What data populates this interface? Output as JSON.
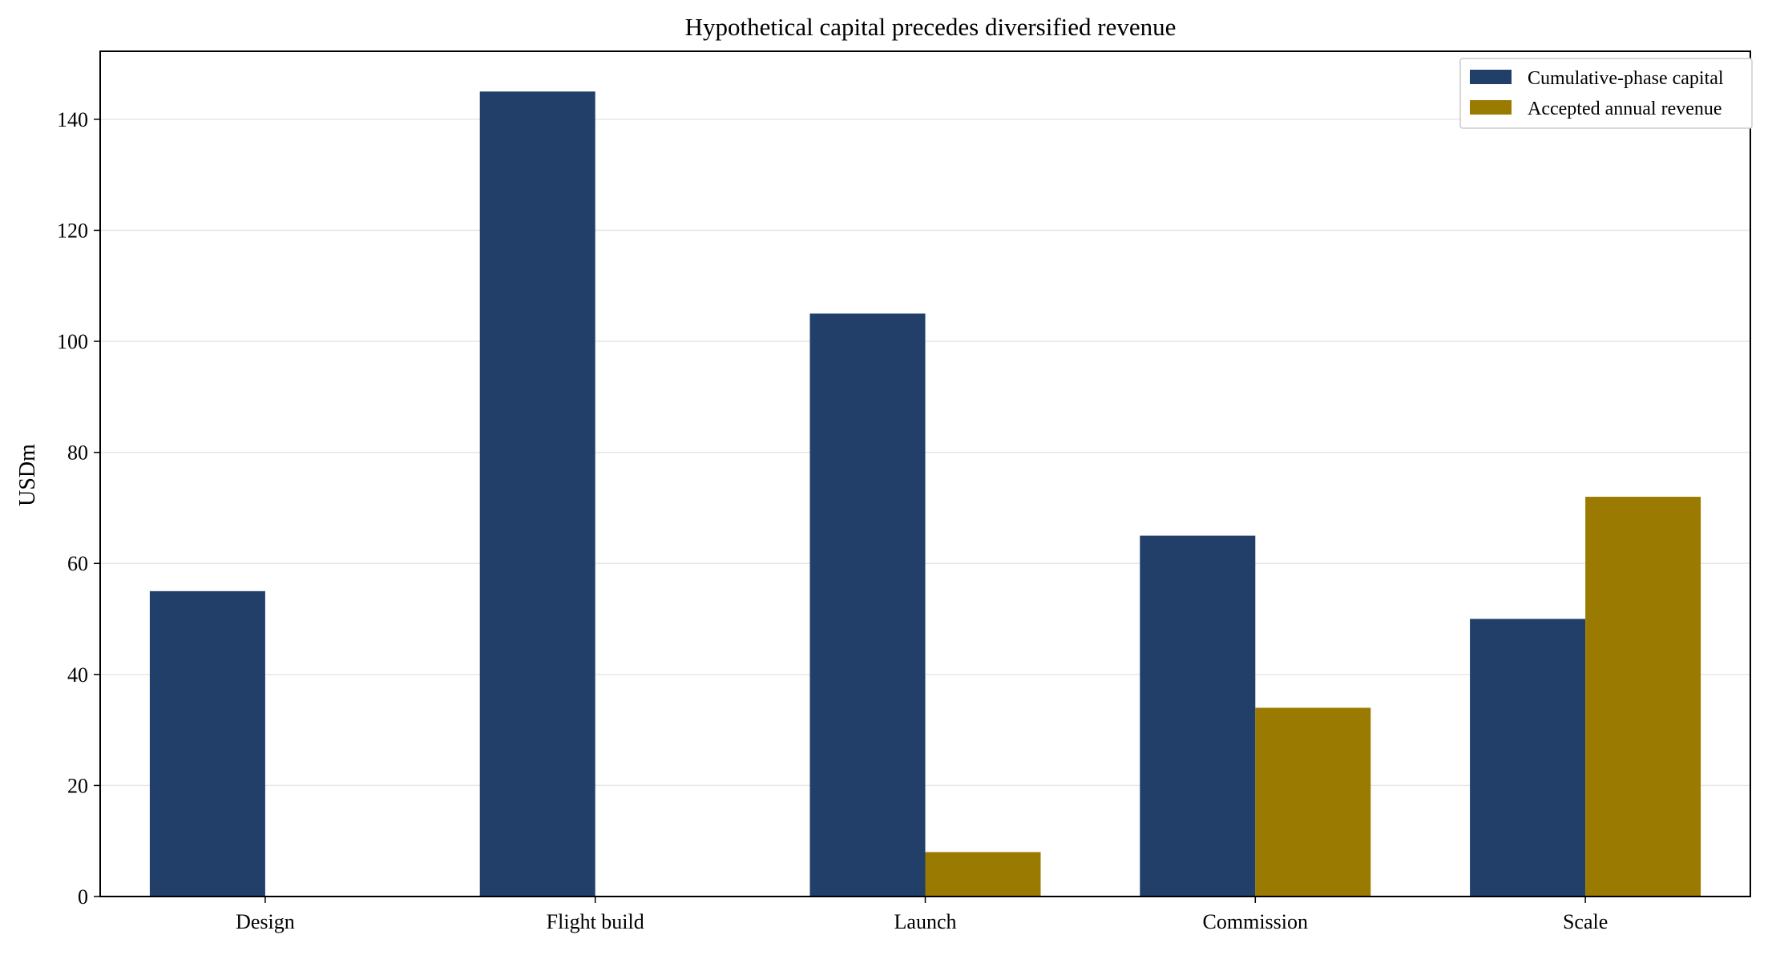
{
  "chart_data": {
    "type": "bar",
    "title": "Hypothetical capital precedes diversified revenue",
    "xlabel": "",
    "ylabel": "USDm",
    "categories": [
      "Design",
      "Flight build",
      "Launch",
      "Commission",
      "Scale"
    ],
    "series": [
      {
        "name": "Cumulative-phase capital",
        "values": [
          55,
          145,
          105,
          65,
          50
        ],
        "color": "#213f68"
      },
      {
        "name": "Accepted annual revenue",
        "values": [
          0,
          0,
          8,
          34,
          72
        ],
        "color": "#9a7a00"
      }
    ],
    "ylim": [
      0,
      152.25
    ],
    "yticks": [
      0,
      20,
      40,
      60,
      80,
      100,
      120,
      140
    ],
    "grid": "y",
    "legend_position": "top-right"
  }
}
